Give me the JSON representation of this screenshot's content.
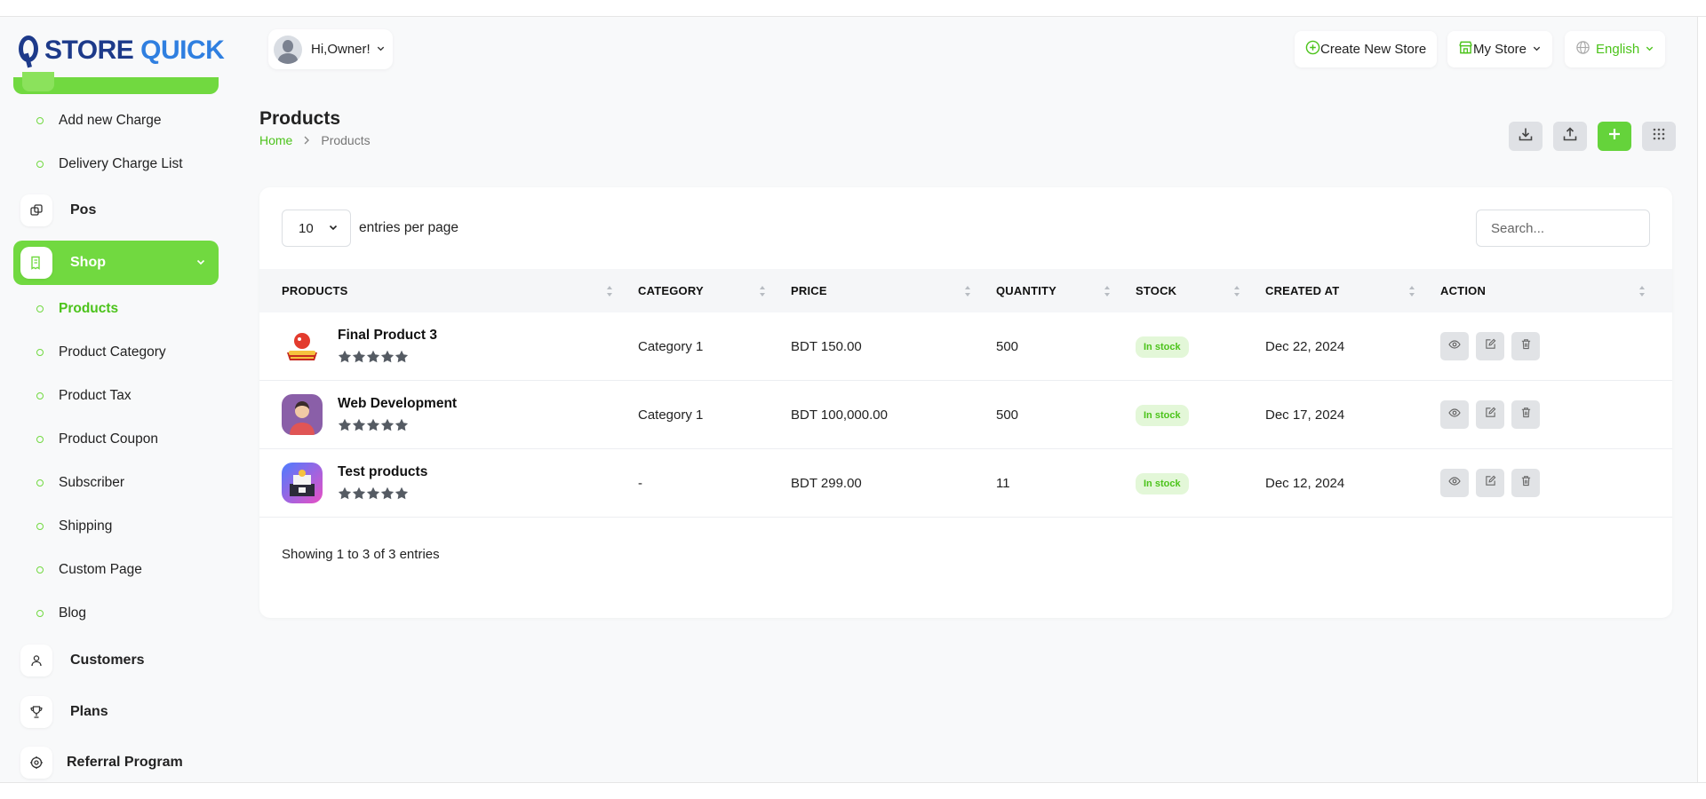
{
  "brand": {
    "part1": "STORE ",
    "part2": "QUICK"
  },
  "sidebar": {
    "delivery_subitems": [
      {
        "label": "Add new Charge"
      },
      {
        "label": "Delivery Charge List"
      }
    ],
    "pos": {
      "label": "Pos",
      "icon": "copy-icon"
    },
    "shop": {
      "label": "Shop",
      "icon": "receipt-icon"
    },
    "shop_subitems": [
      {
        "label": "Products",
        "active": true
      },
      {
        "label": "Product Category"
      },
      {
        "label": "Product Tax"
      },
      {
        "label": "Product Coupon"
      },
      {
        "label": "Subscriber"
      },
      {
        "label": "Shipping"
      },
      {
        "label": "Custom Page"
      },
      {
        "label": "Blog"
      }
    ],
    "customers": {
      "label": "Customers",
      "icon": "user-icon"
    },
    "plans": {
      "label": "Plans",
      "icon": "trophy-icon"
    },
    "referral": {
      "label": "Referral Program",
      "icon": "settings-icon"
    }
  },
  "header": {
    "greeting": "Hi,Owner!",
    "create_store": "Create New Store",
    "my_store": "My Store",
    "language": "English"
  },
  "page": {
    "title": "Products",
    "breadcrumb_home": "Home",
    "breadcrumb_current": "Products"
  },
  "table": {
    "per_page_value": "10",
    "per_page_label": "entries per page",
    "search_placeholder": "Search...",
    "columns": [
      "PRODUCTS",
      "CATEGORY",
      "PRICE",
      "QUANTITY",
      "STOCK",
      "CREATED AT",
      "ACTION"
    ],
    "rows": [
      {
        "name": "Final Product 3",
        "category": "Category 1",
        "price": "BDT 150.00",
        "quantity": "500",
        "stock": "In stock",
        "created": "Dec 22, 2024",
        "rating": 5
      },
      {
        "name": "Web Development",
        "category": "Category 1",
        "price": "BDT 100,000.00",
        "quantity": "500",
        "stock": "In stock",
        "created": "Dec 17, 2024",
        "rating": 5
      },
      {
        "name": "Test products",
        "category": "-",
        "price": "BDT 299.00",
        "quantity": "11",
        "stock": "In stock",
        "created": "Dec 12, 2024",
        "rating": 5
      }
    ],
    "footer": "Showing 1 to 3 of 3 entries"
  },
  "colors": {
    "accent": "#71d940",
    "accent_text": "#4cc31b",
    "badge_bg": "#e3f7d8"
  }
}
